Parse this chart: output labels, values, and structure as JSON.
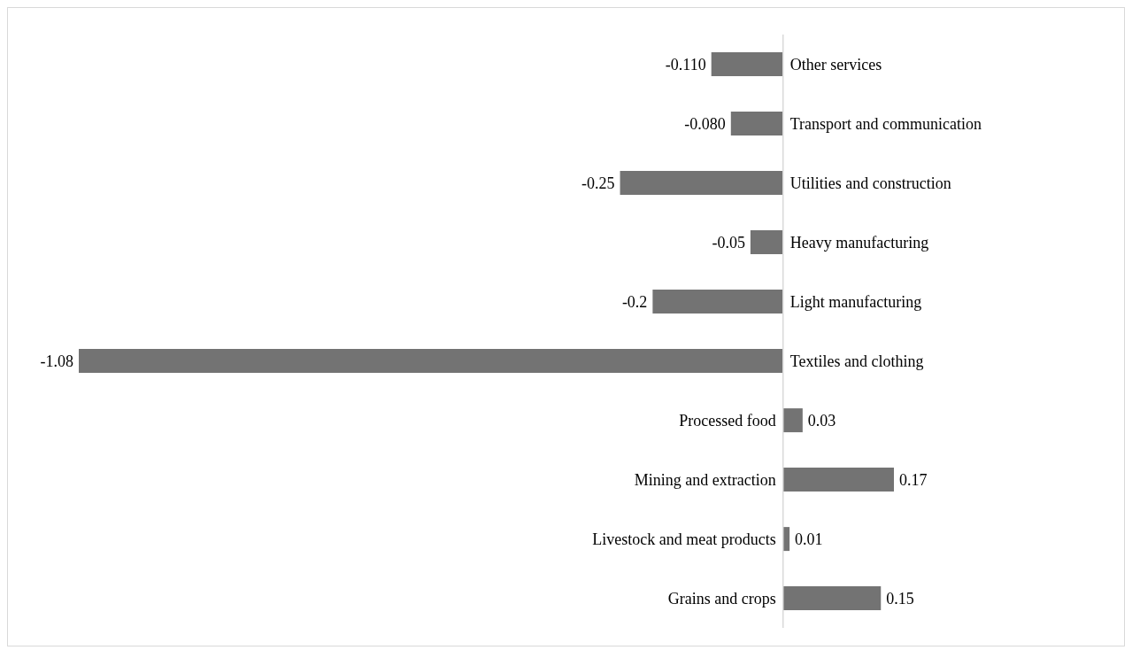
{
  "chart_data": {
    "type": "bar",
    "orientation": "horizontal",
    "relative": false,
    "categories": [
      "Other services",
      "Transport and communication",
      "Utilities and construction",
      "Heavy manufacturing",
      "Light manufacturing",
      "Textiles and clothing",
      "Processed food",
      "Mining and extraction",
      "Livestock and meat products",
      "Grains and crops"
    ],
    "values": [
      -0.11,
      -0.08,
      -0.25,
      -0.05,
      -0.2,
      -1.08,
      0.03,
      0.17,
      0.01,
      0.15
    ],
    "value_labels": [
      "-0.110",
      "-0.080",
      "-0.25",
      "-0.05",
      "-0.2",
      "-1.08",
      "0.03",
      "0.17",
      "0.01",
      "0.15"
    ],
    "color": "#737373",
    "grid": false,
    "legend": false,
    "tick_labels": false
  }
}
